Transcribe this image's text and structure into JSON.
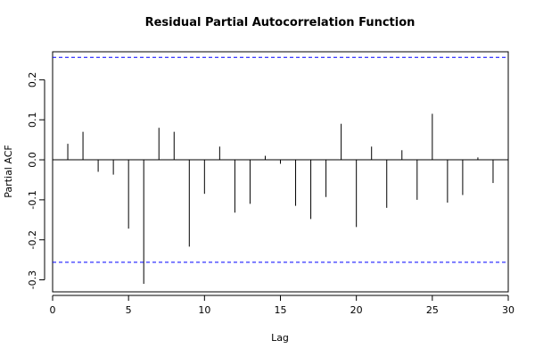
{
  "chart_data": {
    "type": "bar",
    "title": "Residual Partial Autocorrelation Function",
    "xlabel": "Lag",
    "ylabel": "Partial ACF",
    "xlim": [
      0,
      30
    ],
    "ylim": [
      -0.33,
      0.27
    ],
    "xticks": [
      0,
      5,
      10,
      15,
      20,
      25,
      30
    ],
    "yticks": [
      -0.3,
      -0.2,
      -0.1,
      0.0,
      0.1,
      0.2
    ],
    "ytick_labels": [
      "-0.3",
      "-0.2",
      "-0.1",
      "0.0",
      "0.1",
      "0.2"
    ],
    "lags": [
      1,
      2,
      3,
      4,
      5,
      6,
      7,
      8,
      9,
      10,
      11,
      12,
      13,
      14,
      15,
      16,
      17,
      18,
      19,
      20,
      21,
      22,
      23,
      24,
      25,
      26,
      27,
      28,
      29
    ],
    "values": [
      0.04,
      0.07,
      -0.03,
      -0.037,
      -0.172,
      -0.31,
      0.08,
      0.07,
      -0.217,
      -0.085,
      0.033,
      -0.132,
      -0.11,
      0.01,
      -0.01,
      -0.115,
      -0.148,
      -0.093,
      0.09,
      -0.168,
      0.033,
      -0.12,
      0.024,
      -0.1,
      0.115,
      -0.107,
      -0.088,
      0.006,
      -0.058
    ],
    "confidence_band": [
      0.256,
      -0.256
    ],
    "zero_line": 0,
    "colors": {
      "spikes": "#000000",
      "band": "#0000ff",
      "zero": "#000000",
      "frame": "#000000"
    },
    "grid": false,
    "legend": "none"
  }
}
